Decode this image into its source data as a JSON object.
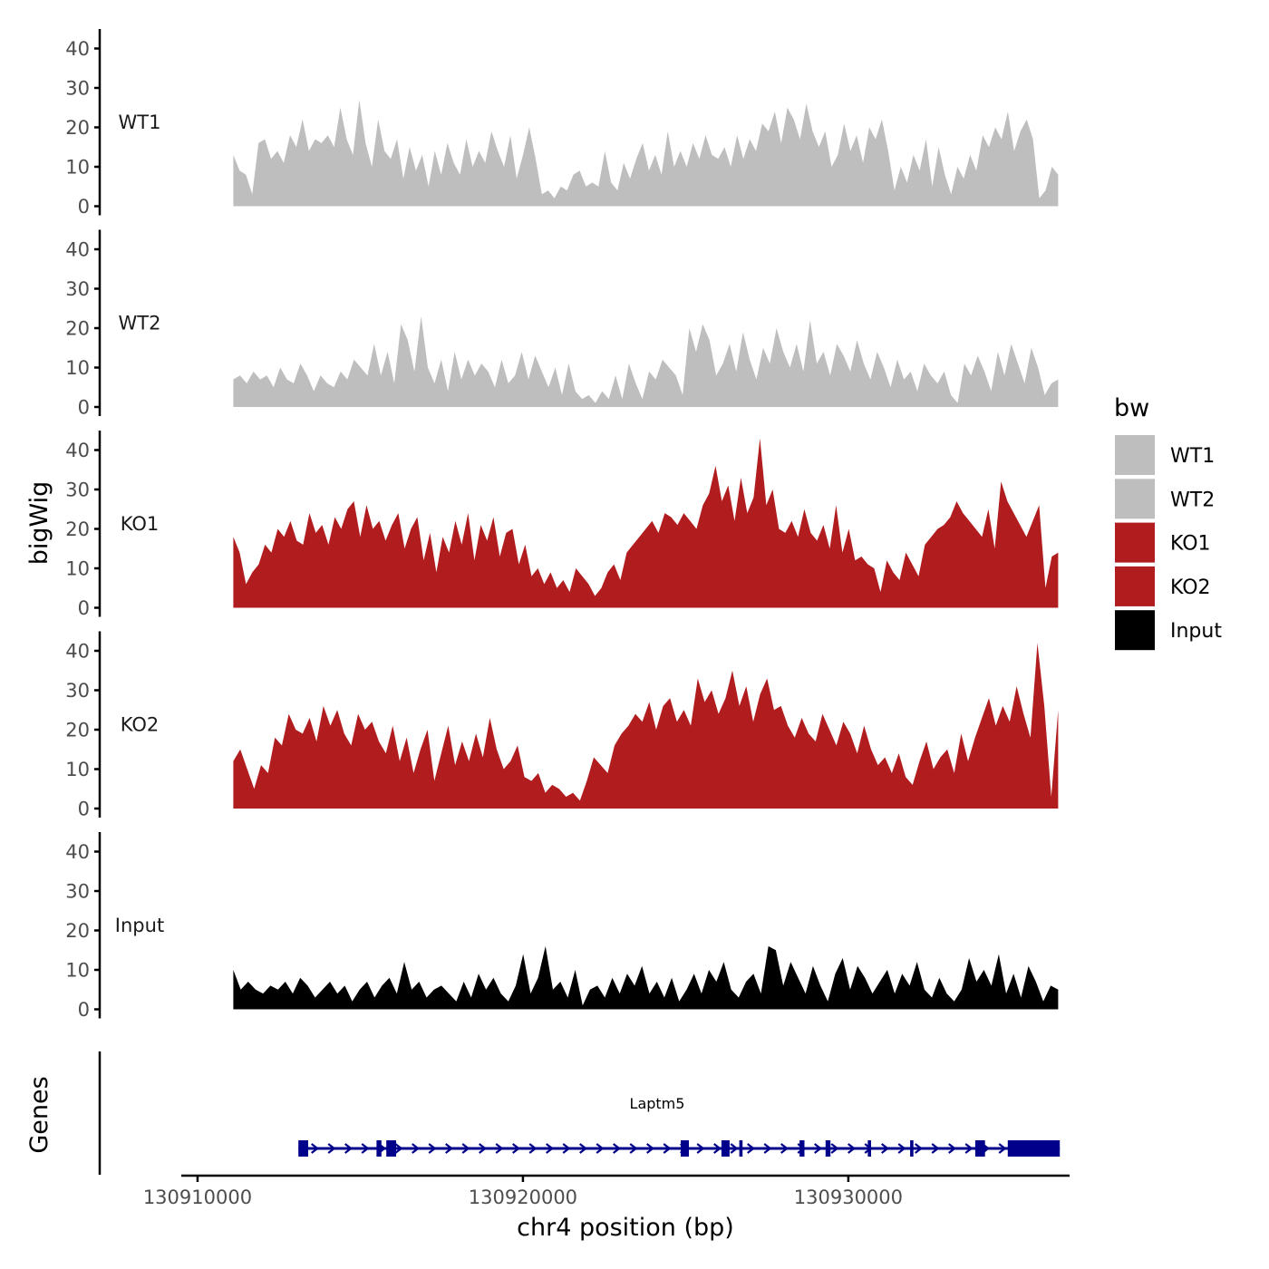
{
  "chart_data": {
    "type": "area",
    "chromosome": "chr4",
    "xlabel": "chr4 position (bp)",
    "ylabel": "bigWig",
    "genes_label": "Genes",
    "xlim": [
      130909500,
      130936800
    ],
    "x_ticks": [
      130910000,
      130920000,
      130930000
    ],
    "x_tick_labels": [
      "130910000",
      "130920000",
      "130930000"
    ],
    "ylim": [
      0,
      45
    ],
    "y_ticks": [
      0,
      10,
      20,
      30,
      40
    ],
    "y_tick_labels": [
      "0",
      "10",
      "20",
      "30",
      "40"
    ],
    "signal_x": [
      130911100,
      130936450
    ],
    "legend": {
      "title": "bw",
      "entries": [
        {
          "label": "WT1",
          "color": "#bebebe"
        },
        {
          "label": "WT2",
          "color": "#bebebe"
        },
        {
          "label": "KO1",
          "color": "#b11c1e"
        },
        {
          "label": "KO2",
          "color": "#b11c1e"
        },
        {
          "label": "Input",
          "color": "#000000"
        }
      ]
    },
    "series": [
      {
        "name": "WT1",
        "color": "#bebebe",
        "values": [
          13,
          9,
          8,
          3,
          16,
          17,
          12,
          14,
          11,
          18,
          15,
          22,
          14,
          17,
          16,
          18,
          15,
          25,
          17,
          13,
          27,
          16,
          10,
          22,
          14,
          12,
          17,
          7,
          15,
          9,
          13,
          5,
          14,
          8,
          16,
          11,
          8,
          17,
          10,
          14,
          11,
          19,
          14,
          10,
          18,
          7,
          13,
          20,
          12,
          3,
          4,
          2,
          5,
          4,
          8,
          9,
          5,
          6,
          5,
          14,
          6,
          4,
          11,
          7,
          12,
          16,
          9,
          13,
          8,
          19,
          10,
          14,
          10,
          16,
          12,
          18,
          13,
          12,
          15,
          10,
          18,
          12,
          17,
          14,
          21,
          19,
          24,
          16,
          25,
          22,
          17,
          26,
          19,
          15,
          19,
          10,
          13,
          21,
          14,
          18,
          11,
          20,
          17,
          22,
          14,
          4,
          10,
          6,
          13,
          9,
          17,
          5,
          15,
          8,
          3,
          10,
          7,
          13,
          9,
          18,
          15,
          20,
          17,
          24,
          14,
          19,
          22,
          17,
          2,
          4,
          10,
          8
        ]
      },
      {
        "name": "WT2",
        "color": "#bebebe",
        "values": [
          7,
          8,
          6,
          9,
          7,
          8,
          5,
          10,
          7,
          6,
          11,
          8,
          4,
          8,
          6,
          5,
          9,
          7,
          12,
          10,
          8,
          16,
          8,
          14,
          6,
          21,
          17,
          9,
          23,
          10,
          6,
          12,
          4,
          14,
          7,
          12,
          8,
          11,
          9,
          5,
          12,
          6,
          8,
          14,
          7,
          13,
          9,
          5,
          10,
          3,
          11,
          4,
          2,
          3,
          1,
          4,
          2,
          8,
          2,
          11,
          6,
          2,
          9,
          7,
          12,
          10,
          8,
          3,
          20,
          14,
          21,
          17,
          8,
          11,
          16,
          9,
          19,
          12,
          7,
          15,
          11,
          20,
          14,
          10,
          16,
          9,
          22,
          11,
          14,
          8,
          16,
          13,
          9,
          17,
          11,
          7,
          14,
          10,
          5,
          12,
          7,
          9,
          4,
          11,
          8,
          6,
          9,
          3,
          1,
          11,
          8,
          13,
          9,
          4,
          14,
          8,
          16,
          11,
          6,
          15,
          10,
          3,
          6,
          7
        ]
      },
      {
        "name": "KO1",
        "color": "#b11c1e",
        "values": [
          18,
          14,
          6,
          9,
          11,
          16,
          14,
          20,
          18,
          22,
          17,
          16,
          24,
          19,
          21,
          16,
          23,
          20,
          25,
          27,
          18,
          26,
          20,
          22,
          17,
          21,
          24,
          15,
          20,
          23,
          12,
          19,
          9,
          18,
          14,
          22,
          16,
          24,
          12,
          21,
          17,
          23,
          13,
          19,
          20,
          11,
          16,
          8,
          10,
          6,
          9,
          5,
          7,
          4,
          10,
          8,
          6,
          3,
          5,
          9,
          11,
          7,
          14,
          16,
          18,
          20,
          22,
          19,
          24,
          23,
          21,
          24,
          22,
          20,
          26,
          29,
          36,
          27,
          31,
          22,
          33,
          24,
          28,
          43,
          26,
          30,
          20,
          19,
          22,
          18,
          25,
          19,
          17,
          21,
          15,
          26,
          14,
          20,
          12,
          13,
          11,
          10,
          4,
          12,
          9,
          7,
          14,
          11,
          8,
          16,
          18,
          20,
          21,
          23,
          27,
          24,
          22,
          20,
          18,
          25,
          15,
          32,
          27,
          24,
          21,
          18,
          22,
          26,
          5,
          13,
          14
        ]
      },
      {
        "name": "KO2",
        "color": "#b11c1e",
        "values": [
          12,
          15,
          10,
          5,
          11,
          9,
          18,
          16,
          24,
          20,
          19,
          23,
          17,
          26,
          21,
          25,
          19,
          16,
          24,
          20,
          22,
          17,
          14,
          21,
          12,
          18,
          9,
          15,
          20,
          7,
          14,
          21,
          11,
          17,
          12,
          19,
          13,
          23,
          15,
          10,
          12,
          16,
          8,
          7,
          9,
          4,
          6,
          5,
          3,
          4,
          2,
          7,
          13,
          11,
          9,
          16,
          19,
          21,
          24,
          22,
          27,
          20,
          26,
          28,
          22,
          25,
          21,
          33,
          27,
          30,
          24,
          28,
          35,
          26,
          31,
          22,
          29,
          33,
          25,
          26,
          21,
          18,
          23,
          19,
          17,
          24,
          20,
          16,
          22,
          19,
          14,
          21,
          15,
          11,
          13,
          9,
          14,
          8,
          6,
          12,
          17,
          10,
          13,
          15,
          9,
          19,
          12,
          18,
          23,
          28,
          21,
          26,
          22,
          31,
          24,
          18,
          42,
          26,
          3,
          25
        ]
      },
      {
        "name": "Input",
        "color": "#000000",
        "values": [
          10,
          5,
          7,
          5,
          4,
          6,
          5,
          7,
          4,
          8,
          6,
          3,
          5,
          7,
          4,
          6,
          2,
          5,
          7,
          3,
          6,
          8,
          4,
          12,
          5,
          7,
          3,
          5,
          6,
          4,
          2,
          7,
          3,
          9,
          5,
          8,
          4,
          2,
          6,
          14,
          4,
          8,
          16,
          5,
          7,
          3,
          10,
          1,
          5,
          6,
          3,
          8,
          4,
          9,
          6,
          11,
          4,
          7,
          3,
          8,
          2,
          5,
          9,
          4,
          10,
          7,
          12,
          5,
          3,
          7,
          9,
          4,
          16,
          15,
          6,
          12,
          8,
          4,
          11,
          6,
          2,
          9,
          13,
          5,
          11,
          8,
          4,
          7,
          10,
          4,
          9,
          6,
          12,
          5,
          3,
          8,
          4,
          2,
          5,
          13,
          7,
          10,
          6,
          14,
          4,
          9,
          3,
          11,
          7,
          2,
          6,
          5
        ]
      }
    ],
    "gene": {
      "name": "Laptm5",
      "color": "#00008b",
      "strand": "+",
      "start": 130913100,
      "end": 130936500,
      "exons": [
        [
          130913100,
          130913400
        ],
        [
          130915500,
          130915650
        ],
        [
          130915800,
          130916100
        ],
        [
          130924850,
          130925100
        ],
        [
          130926100,
          130926350
        ],
        [
          130926650,
          130926750
        ],
        [
          130928500,
          130928650
        ],
        [
          130929300,
          130929450
        ],
        [
          130930600,
          130930700
        ],
        [
          130931900,
          130932000
        ],
        [
          130933900,
          130934200
        ],
        [
          130934900,
          130936500
        ]
      ]
    }
  }
}
